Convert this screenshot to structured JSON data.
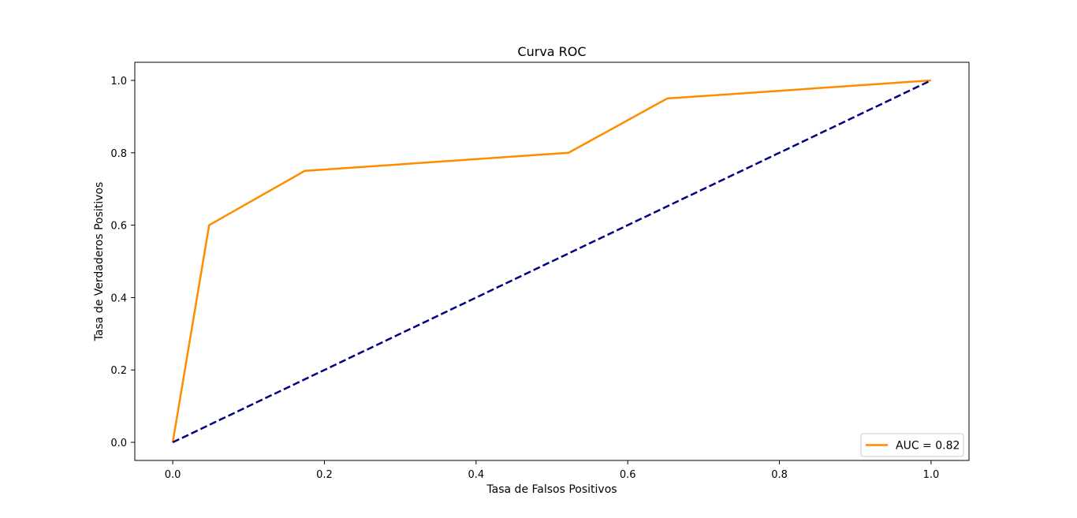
{
  "chart_data": {
    "type": "line",
    "title": "Curva ROC",
    "xlabel": "Tasa de Falsos Positivos",
    "ylabel": "Tasa de Verdaderos Positivos",
    "xlim": [
      -0.05,
      1.05
    ],
    "ylim": [
      -0.05,
      1.05
    ],
    "xticks": [
      0.0,
      0.2,
      0.4,
      0.6,
      0.8,
      1.0
    ],
    "xtick_labels": [
      "0.0",
      "0.2",
      "0.4",
      "0.6",
      "0.8",
      "1.0"
    ],
    "yticks": [
      0.0,
      0.2,
      0.4,
      0.6,
      0.8,
      1.0
    ],
    "ytick_labels": [
      "0.0",
      "0.2",
      "0.4",
      "0.6",
      "0.8",
      "1.0"
    ],
    "grid": false,
    "legend_position": "lower-right",
    "series": [
      {
        "name": "AUC = 0.82",
        "color": "#ff8c00",
        "style": "solid",
        "x": [
          0.0,
          0.048,
          0.174,
          0.522,
          0.652,
          1.0
        ],
        "y": [
          0.0,
          0.6,
          0.75,
          0.8,
          0.95,
          1.0
        ]
      },
      {
        "color": "#000080",
        "style": "dashed",
        "x": [
          0.0,
          1.0
        ],
        "y": [
          0.0,
          1.0
        ]
      }
    ]
  }
}
